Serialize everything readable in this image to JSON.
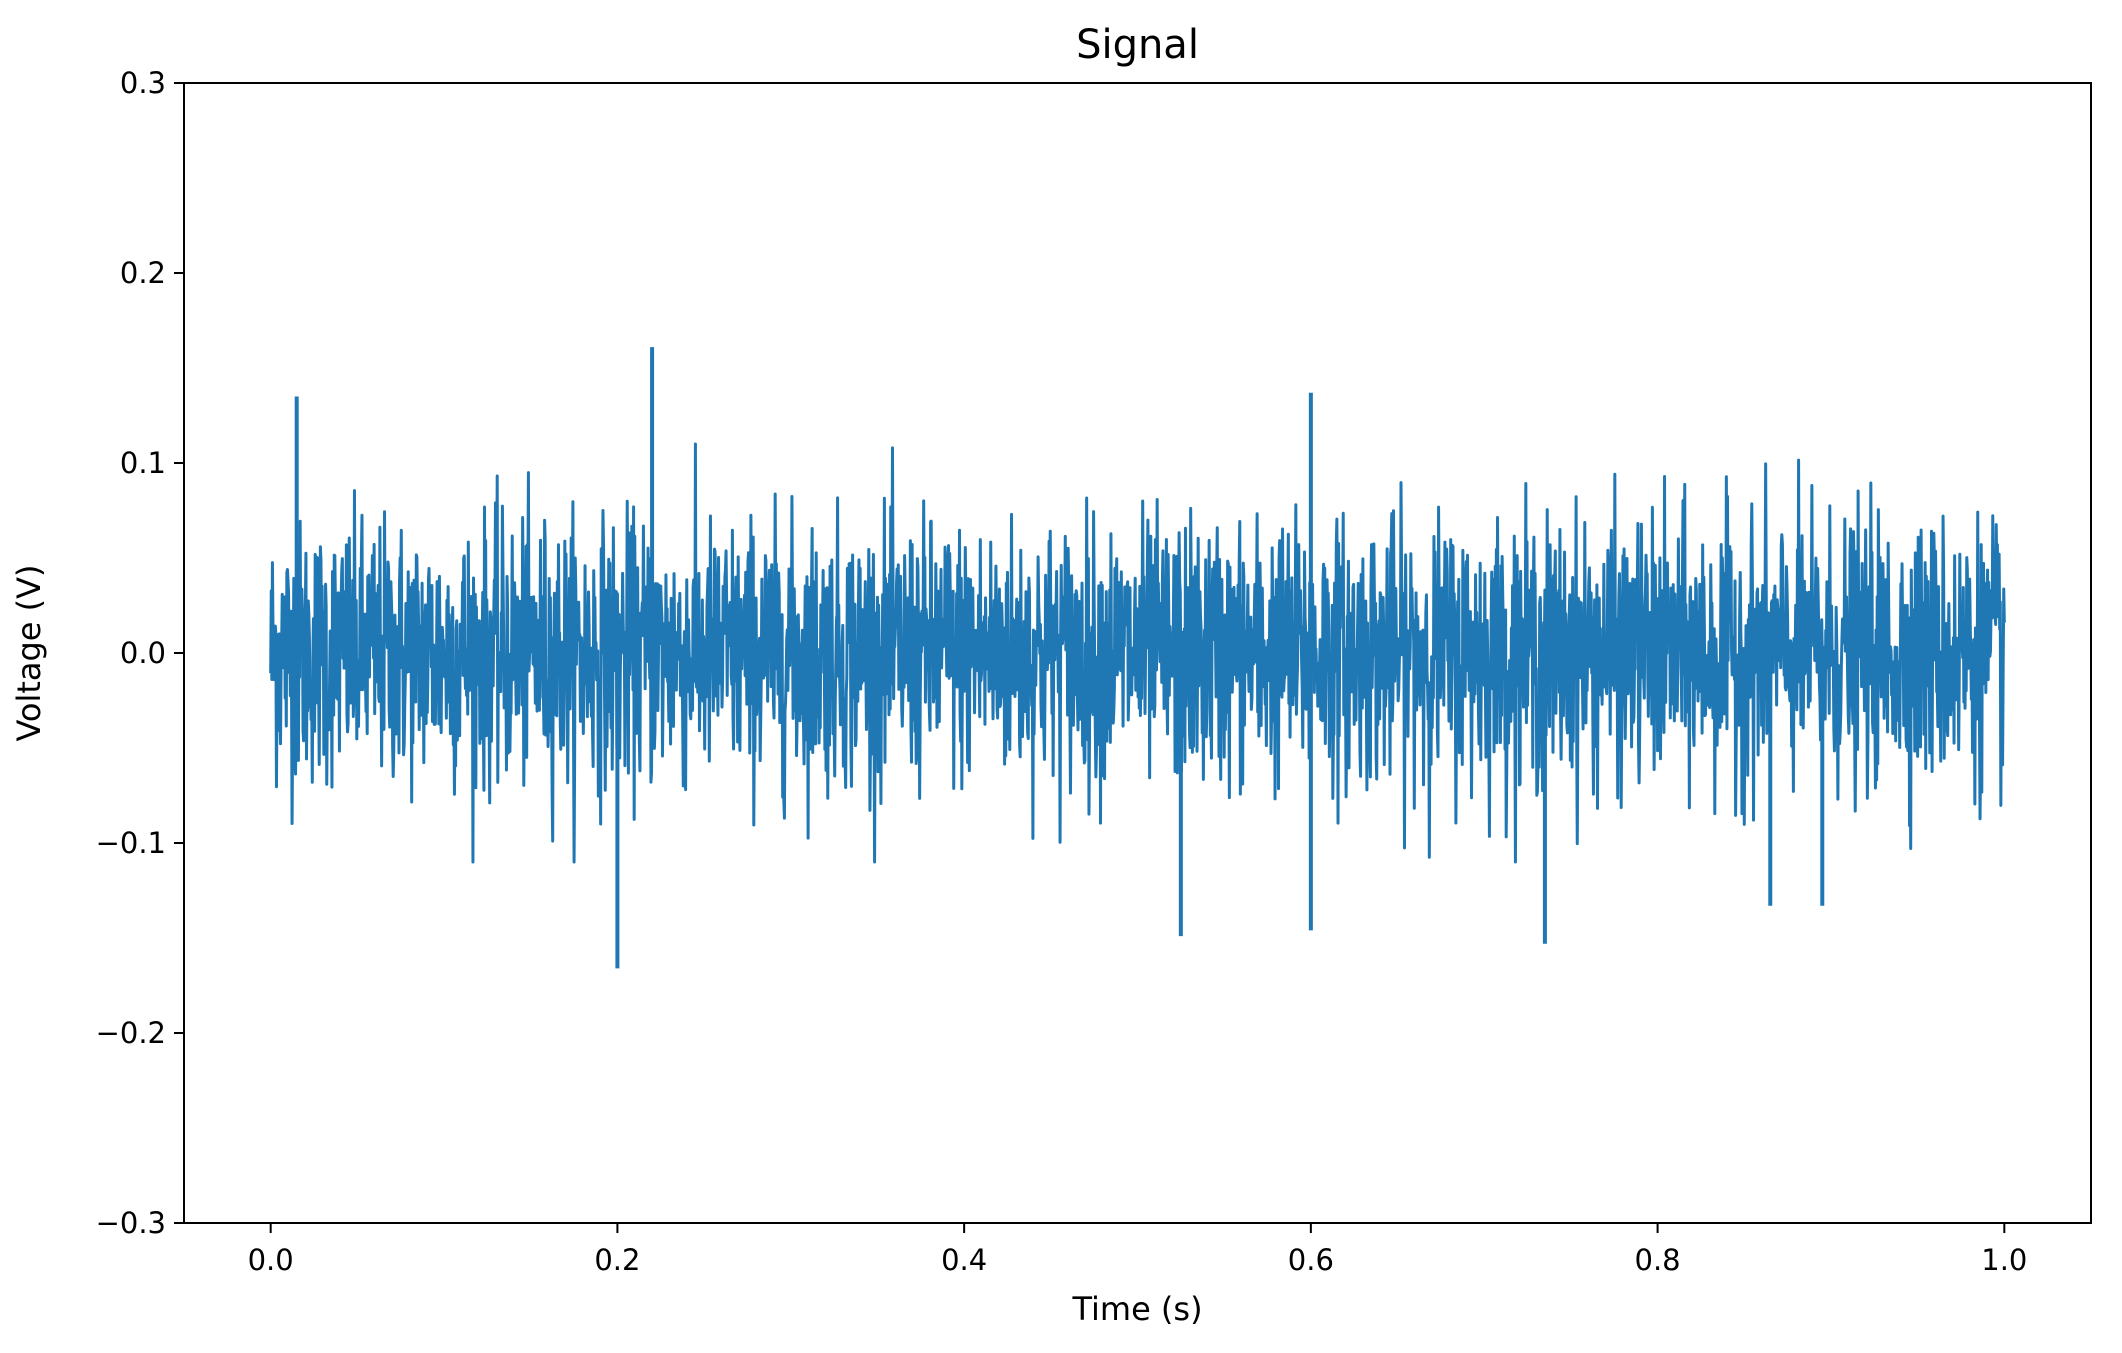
{
  "chart_data": {
    "type": "line",
    "title": "Signal",
    "xlabel": "Time (s)",
    "ylabel": "Voltage (V)",
    "xlim": [
      -0.05,
      1.05
    ],
    "ylim": [
      -0.3,
      0.3
    ],
    "x_ticks": [
      0.0,
      0.2,
      0.4,
      0.6,
      0.8,
      1.0
    ],
    "x_tick_labels": [
      "0.0",
      "0.2",
      "0.4",
      "0.6",
      "0.8",
      "1.0"
    ],
    "y_ticks": [
      -0.3,
      -0.2,
      -0.1,
      0.0,
      0.1,
      0.2,
      0.3
    ],
    "y_tick_labels": [
      "−0.3",
      "−0.2",
      "−0.1",
      "0.0",
      "0.1",
      "0.2",
      "0.3"
    ],
    "grid": false,
    "legend": "none",
    "series_color": "#1f77b4",
    "series": [
      {
        "x_range": [
          0.0,
          1.0
        ],
        "approx_envelope": [
          -0.09,
          0.09
        ],
        "notable_peaks": [
          {
            "x": 0.015,
            "y": 0.135
          },
          {
            "x": 0.22,
            "y": 0.161
          },
          {
            "x": 0.6,
            "y": 0.137
          },
          {
            "x": 0.2,
            "y": -0.166
          },
          {
            "x": 0.525,
            "y": -0.149
          },
          {
            "x": 0.6,
            "y": -0.146
          },
          {
            "x": 0.735,
            "y": -0.153
          },
          {
            "x": 0.865,
            "y": -0.133
          },
          {
            "x": 0.895,
            "y": -0.133
          }
        ]
      }
    ]
  }
}
